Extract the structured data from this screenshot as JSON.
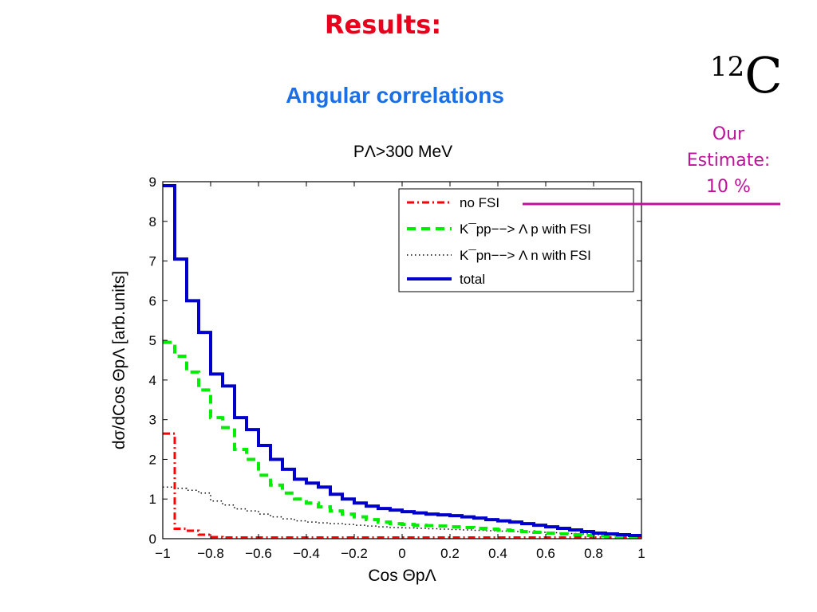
{
  "slide": {
    "title": "Results:",
    "subtitle": "Angular correlations",
    "nucleus_mass": "12",
    "nucleus_symbol": "C",
    "estimate_lines": [
      "Our",
      "Estimate:",
      "10 %"
    ]
  },
  "colors": {
    "title": "#e8001c",
    "subtitle": "#1a6fe8",
    "estimate": "#c0119a",
    "no_fsi": "#ff0000",
    "kpp": "#00ee00",
    "kpn": "#000000",
    "total": "#0000cc"
  },
  "chart_data": {
    "type": "line",
    "step": true,
    "title": "PΛ>300 MeV",
    "xlabel": "Cos ΘpΛ",
    "ylabel": "dσ/dCos ΘpΛ [arb.units]",
    "xlim": [
      -1,
      1
    ],
    "ylim": [
      0,
      9
    ],
    "xticks": [
      "−1",
      "−0.8",
      "−0.6",
      "−0.4",
      "−0.2",
      "0",
      "0.2",
      "0.4",
      "0.6",
      "0.8",
      "1"
    ],
    "yticks": [
      "0",
      "1",
      "2",
      "3",
      "4",
      "5",
      "6",
      "7",
      "8",
      "9"
    ],
    "legend_position": "top-right",
    "bin_edges": [
      -1.0,
      -0.95,
      -0.9,
      -0.85,
      -0.8,
      -0.75,
      -0.7,
      -0.65,
      -0.6,
      -0.55,
      -0.5,
      -0.45,
      -0.4,
      -0.35,
      -0.3,
      -0.25,
      -0.2,
      -0.15,
      -0.1,
      -0.05,
      0.0,
      0.05,
      0.1,
      0.15,
      0.2,
      0.25,
      0.3,
      0.35,
      0.4,
      0.45,
      0.5,
      0.55,
      0.6,
      0.65,
      0.7,
      0.75,
      0.8,
      0.85,
      0.9,
      0.95,
      1.0
    ],
    "series": [
      {
        "name": "no FSI",
        "style": "dashdot",
        "color": "#ff0000",
        "values": [
          2.65,
          0.25,
          0.2,
          0.1,
          0.04,
          0.03,
          0.03,
          0.03,
          0.03,
          0.03,
          0.03,
          0.03,
          0.03,
          0.03,
          0.03,
          0.03,
          0.03,
          0.03,
          0.03,
          0.03,
          0.03,
          0.03,
          0.03,
          0.03,
          0.03,
          0.03,
          0.03,
          0.03,
          0.03,
          0.03,
          0.03,
          0.03,
          0.03,
          0.03,
          0.03,
          0.03,
          0.03,
          0.03,
          0.03,
          0.03
        ]
      },
      {
        "name": "K¯pp−−> Λ p with FSI",
        "style": "dashed",
        "color": "#00ee00",
        "values": [
          4.95,
          4.6,
          4.2,
          3.75,
          3.05,
          2.8,
          2.25,
          2.0,
          1.6,
          1.35,
          1.15,
          1.0,
          0.9,
          0.8,
          0.7,
          0.62,
          0.55,
          0.48,
          0.42,
          0.38,
          0.36,
          0.34,
          0.33,
          0.32,
          0.3,
          0.28,
          0.26,
          0.24,
          0.22,
          0.2,
          0.18,
          0.16,
          0.14,
          0.12,
          0.1,
          0.08,
          0.07,
          0.06,
          0.05,
          0.05
        ]
      },
      {
        "name": "K¯pn−−> Λ n with FSI",
        "style": "dotted",
        "color": "#000000",
        "values": [
          1.3,
          1.27,
          1.22,
          1.15,
          0.95,
          0.85,
          0.75,
          0.7,
          0.62,
          0.55,
          0.5,
          0.45,
          0.42,
          0.4,
          0.38,
          0.36,
          0.34,
          0.32,
          0.3,
          0.28,
          0.27,
          0.26,
          0.25,
          0.24,
          0.23,
          0.22,
          0.21,
          0.2,
          0.19,
          0.18,
          0.17,
          0.16,
          0.15,
          0.14,
          0.13,
          0.12,
          0.1,
          0.09,
          0.08,
          0.07
        ]
      },
      {
        "name": "total",
        "style": "solid",
        "color": "#0000cc",
        "values": [
          8.9,
          7.05,
          6.0,
          5.2,
          4.15,
          3.85,
          3.05,
          2.75,
          2.35,
          2.0,
          1.75,
          1.5,
          1.4,
          1.3,
          1.12,
          1.0,
          0.9,
          0.82,
          0.76,
          0.72,
          0.68,
          0.65,
          0.62,
          0.6,
          0.58,
          0.55,
          0.52,
          0.48,
          0.45,
          0.42,
          0.38,
          0.34,
          0.3,
          0.26,
          0.22,
          0.18,
          0.14,
          0.12,
          0.1,
          0.08
        ]
      }
    ]
  }
}
